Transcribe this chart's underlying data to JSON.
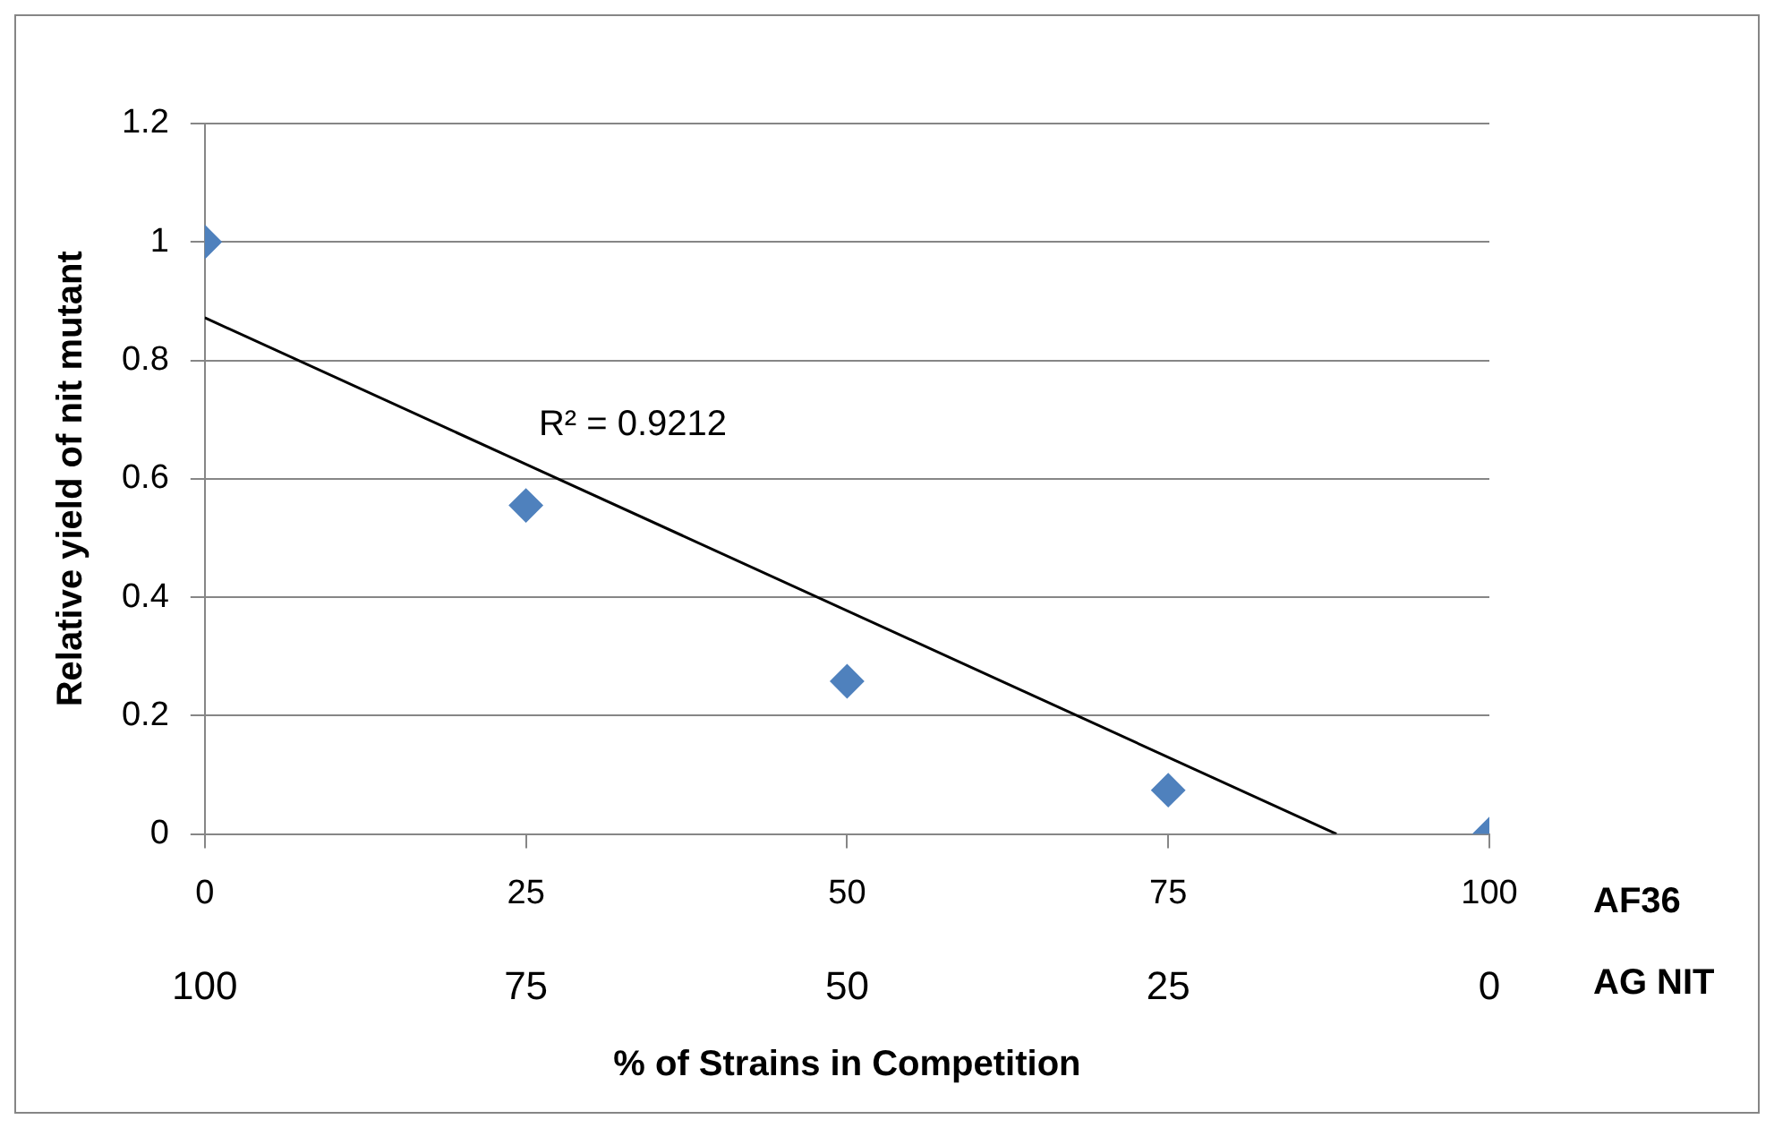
{
  "chart_data": {
    "type": "scatter",
    "xlabel": "% of Strains in Competition",
    "ylabel": "Relative yield of nit mutant",
    "annotations": [
      "R² = 0.9212",
      "AF36",
      "AG NIT"
    ],
    "x": [
      0,
      25,
      50,
      75,
      100
    ],
    "series": [
      {
        "color": "#4f81bd",
        "marker": "diamond",
        "values": [
          1,
          0.555,
          0.258,
          0.074,
          0
        ]
      },
      {
        "type": "line",
        "marker": "none",
        "color": "#000000",
        "x": [
          0,
          88.1
        ],
        "values": [
          0.872,
          0
        ]
      }
    ],
    "xlim": [
      0,
      100
    ],
    "xticks": [
      0,
      25,
      50,
      75,
      100
    ],
    "x2lim": [
      100,
      0
    ],
    "x2ticks": [
      100,
      75,
      50,
      25,
      0
    ],
    "ylim": [
      0,
      1.2
    ],
    "yticks": [
      0,
      0.2,
      0.4,
      0.6,
      0.8,
      1,
      1.2
    ],
    "grid": "y"
  }
}
